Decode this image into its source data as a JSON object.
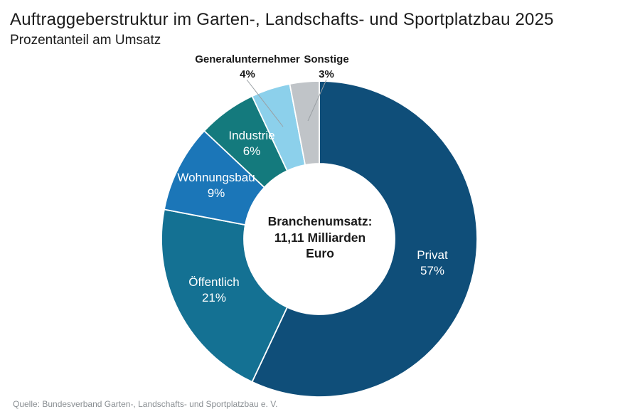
{
  "header": {
    "title": "Auftraggeberstruktur im Garten-, Landschafts- und Sportplatzbau 2025",
    "subtitle": "Prozentanteil am Umsatz"
  },
  "chart_data": {
    "type": "pie",
    "subtype": "donut",
    "title": "Auftraggeberstruktur im Garten-, Landschafts- und Sportplatzbau 2025",
    "value_unit": "Prozentanteil am Umsatz",
    "direction": "clockwise",
    "start_angle_deg": 0,
    "legend_position": "labels-on-slices",
    "slices": [
      {
        "label": "Privat",
        "value": 57,
        "pct_label": "57%",
        "color": "#0F4E79",
        "label_placement": "inside"
      },
      {
        "label": "Öffentlich",
        "value": 21,
        "pct_label": "21%",
        "color": "#147193",
        "label_placement": "inside"
      },
      {
        "label": "Wohnungsbau",
        "value": 9,
        "pct_label": "9%",
        "color": "#1B76B8",
        "label_placement": "inside"
      },
      {
        "label": "Industrie",
        "value": 6,
        "pct_label": "6%",
        "color": "#147A7D",
        "label_placement": "inside"
      },
      {
        "label": "Generalunternehmer",
        "value": 4,
        "pct_label": "4%",
        "color": "#8CD0EB",
        "label_placement": "outside-callout"
      },
      {
        "label": "Sonstige",
        "value": 3,
        "pct_label": "3%",
        "color": "#C0C4C8",
        "label_placement": "outside-callout"
      }
    ],
    "center_text": {
      "line1": "Branchenumsatz:",
      "line2": "11,11 Milliarden",
      "line3": "Euro"
    },
    "colors": {
      "slice_divider": "#ffffff",
      "leader_line": "#9aa0a4",
      "inside_label_text": "#ffffff",
      "outside_label_text": "#1a1a1a"
    }
  },
  "footer": {
    "source": "Quelle: Bundesverband Garten-, Landschafts- und Sportplatzbau e. V."
  }
}
